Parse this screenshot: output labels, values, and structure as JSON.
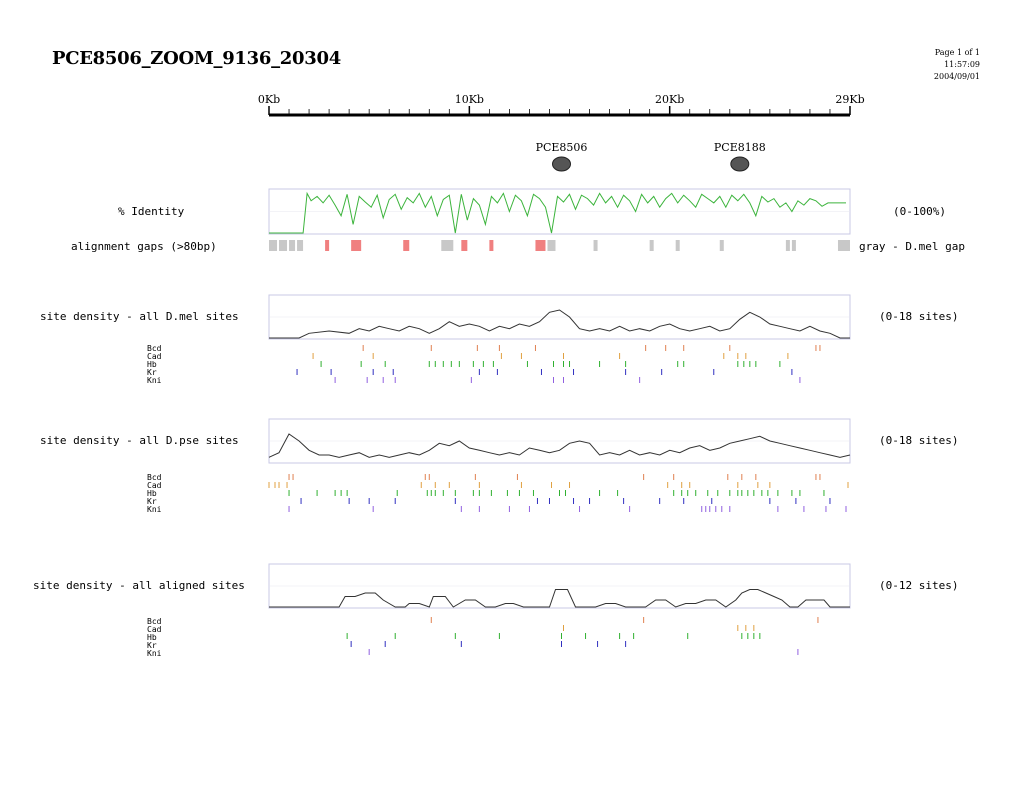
{
  "header": {
    "title": "PCE8506_ZOOM_9136_20304",
    "page": "Page 1 of 1",
    "time": "11:57:09",
    "date": "2004/09/01"
  },
  "ruler": {
    "ticks": [
      {
        "kb": 0,
        "label": "0Kb"
      },
      {
        "kb": 10,
        "label": "10Kb"
      },
      {
        "kb": 20,
        "label": "20Kb"
      },
      {
        "kb": 29,
        "label": "29Kb"
      }
    ],
    "max_kb": 29
  },
  "elements": [
    {
      "name": "PCE8506",
      "kb": 14.6
    },
    {
      "name": "PCE8188",
      "kb": 23.5
    }
  ],
  "labels": {
    "identity": "% Identity",
    "identity_range": "(0-100%)",
    "gaps": "alignment gaps (>80bp)",
    "gaps_legend": "gray - D.mel gap",
    "dmel_density": "site density - all D.mel sites",
    "dmel_range": "(0-18 sites)",
    "dpse_density": "site density - all D.pse sites",
    "dpse_range": "(0-18 sites)",
    "aligned_density": "site density - all aligned sites",
    "aligned_range": "(0-12 sites)"
  },
  "colors": {
    "identity": "#3cb43c",
    "density": "#333333",
    "gap_gray": "#c8c8c8",
    "gap_red": "#f08080",
    "Bcd": "#e08050",
    "Cad": "#e0a040",
    "Hb": "#30b030",
    "Kr": "#3030c0",
    "Kni": "#9060e0"
  },
  "factors": [
    "Bcd",
    "Cad",
    "Hb",
    "Kr",
    "Kni"
  ],
  "chart_data": [
    {
      "type": "line",
      "name": "% Identity",
      "ylim": [
        0,
        100
      ],
      "x_kb": [
        0,
        1.7,
        1.9,
        2.1,
        2.4,
        2.7,
        3.0,
        3.3,
        3.6,
        3.9,
        4.2,
        4.5,
        4.8,
        5.1,
        5.4,
        5.7,
        6.0,
        6.3,
        6.6,
        6.9,
        7.2,
        7.5,
        7.8,
        8.1,
        8.4,
        8.7,
        9.0,
        9.3,
        9.6,
        9.9,
        10.2,
        10.5,
        10.8,
        11.1,
        11.4,
        11.7,
        12.0,
        12.3,
        12.6,
        12.9,
        13.2,
        13.5,
        13.8,
        14.1,
        14.4,
        14.7,
        15.0,
        15.3,
        15.6,
        15.9,
        16.2,
        16.5,
        16.8,
        17.1,
        17.4,
        17.7,
        18.0,
        18.3,
        18.6,
        18.9,
        19.2,
        19.5,
        19.8,
        20.1,
        20.4,
        20.7,
        21.0,
        21.3,
        21.6,
        21.9,
        22.2,
        22.5,
        22.8,
        23.1,
        23.4,
        23.7,
        24.0,
        24.3,
        24.6,
        24.9,
        25.2,
        25.5,
        25.8,
        26.1,
        26.4,
        26.7,
        27.0,
        27.3,
        27.6,
        27.9,
        28.2,
        28.5,
        28.8
      ],
      "values": [
        0,
        0,
        92,
        75,
        85,
        70,
        88,
        65,
        40,
        90,
        20,
        85,
        72,
        60,
        88,
        35,
        78,
        90,
        55,
        82,
        70,
        92,
        60,
        85,
        40,
        78,
        88,
        0,
        90,
        30,
        80,
        65,
        20,
        85,
        70,
        92,
        50,
        88,
        75,
        40,
        90,
        80,
        60,
        0,
        85,
        72,
        90,
        55,
        88,
        80,
        65,
        92,
        70,
        85,
        60,
        88,
        75,
        50,
        90,
        70,
        85,
        60,
        80,
        92,
        70,
        88,
        75,
        60,
        90,
        80,
        70,
        85,
        60,
        88,
        75,
        90,
        70,
        40,
        85,
        72,
        80,
        60,
        70,
        50,
        75,
        65,
        80,
        75,
        62,
        70,
        70,
        70,
        70
      ]
    },
    {
      "type": "bar",
      "name": "alignment gaps (>80bp)",
      "gray_kb": [
        [
          0,
          0.4
        ],
        [
          0.5,
          0.9
        ],
        [
          1.0,
          1.3
        ],
        [
          1.4,
          1.7
        ],
        [
          8.6,
          9.2
        ],
        [
          13.9,
          14.3
        ],
        [
          16.2,
          16.4
        ],
        [
          19.0,
          19.2
        ],
        [
          20.3,
          20.5
        ],
        [
          22.5,
          22.7
        ],
        [
          25.8,
          26.0
        ],
        [
          26.1,
          26.3
        ],
        [
          28.4,
          29.0
        ]
      ],
      "red_kb": [
        [
          2.8,
          3.0
        ],
        [
          4.1,
          4.6
        ],
        [
          6.7,
          7.0
        ],
        [
          9.6,
          9.9
        ],
        [
          11.0,
          11.2
        ],
        [
          13.3,
          13.8
        ]
      ]
    },
    {
      "type": "line",
      "name": "site density - all D.mel sites",
      "ylim": [
        0,
        18
      ],
      "x_kb": [
        0,
        1.5,
        2,
        3,
        4,
        4.5,
        5,
        5.5,
        6,
        6.5,
        7,
        7.5,
        8,
        8.5,
        9,
        9.5,
        10,
        10.5,
        11,
        11.5,
        12,
        12.5,
        13,
        13.5,
        14,
        14.5,
        15,
        15.5,
        16,
        16.5,
        17,
        17.5,
        18,
        18.5,
        19,
        19.5,
        20,
        20.5,
        21,
        21.5,
        22,
        22.5,
        23,
        23.5,
        24,
        24.5,
        25,
        25.5,
        26,
        26.5,
        27,
        27.5,
        28,
        28.5,
        29
      ],
      "values": [
        0,
        0,
        2,
        3,
        2,
        4,
        3,
        5,
        4,
        3,
        5,
        4,
        2,
        4,
        7,
        5,
        6,
        5,
        3,
        5,
        4,
        6,
        5,
        7,
        11,
        12,
        9,
        4,
        3,
        4,
        3,
        5,
        3,
        4,
        3,
        5,
        6,
        4,
        3,
        4,
        5,
        3,
        4,
        8,
        11,
        9,
        6,
        5,
        4,
        3,
        5,
        3,
        2,
        0,
        0
      ]
    },
    {
      "type": "line",
      "name": "site density - all D.pse sites",
      "ylim": [
        0,
        18
      ],
      "x_kb": [
        0,
        0.5,
        1,
        1.5,
        2,
        2.5,
        3,
        3.5,
        4,
        4.5,
        5,
        5.5,
        6,
        6.5,
        7,
        7.5,
        8,
        8.5,
        9,
        9.5,
        10,
        10.5,
        11,
        11.5,
        12,
        12.5,
        13,
        13.5,
        14,
        14.5,
        15,
        15.5,
        16,
        16.5,
        17,
        17.5,
        18,
        18.5,
        19,
        19.5,
        20,
        20.5,
        21,
        21.5,
        22,
        22.5,
        23,
        23.5,
        24,
        24.5,
        25,
        25.5,
        26,
        26.5,
        27,
        27.5,
        28,
        28.5,
        29
      ],
      "values": [
        2,
        4,
        12,
        9,
        5,
        3,
        3,
        2,
        3,
        4,
        2,
        3,
        2,
        3,
        4,
        3,
        5,
        8,
        7,
        9,
        6,
        5,
        4,
        3,
        4,
        3,
        6,
        5,
        4,
        5,
        8,
        9,
        8,
        3,
        4,
        3,
        5,
        3,
        4,
        3,
        5,
        4,
        6,
        7,
        5,
        6,
        8,
        9,
        10,
        11,
        9,
        8,
        7,
        6,
        5,
        4,
        3,
        2,
        3
      ]
    },
    {
      "type": "line",
      "name": "site density - all aligned sites",
      "ylim": [
        0,
        12
      ],
      "x_kb": [
        0,
        3.5,
        3.8,
        4.3,
        4.8,
        5.3,
        5.7,
        6.3,
        6.8,
        7,
        7.5,
        8,
        8.2,
        8.8,
        9.2,
        9.8,
        10.3,
        10.8,
        11.3,
        11.8,
        12.2,
        12.7,
        13.3,
        14,
        14.3,
        14.6,
        14.9,
        15.3,
        15.6,
        16.3,
        16.8,
        17.3,
        17.8,
        18.3,
        18.8,
        19.3,
        19.8,
        20.3,
        20.8,
        21.3,
        21.8,
        22.3,
        22.8,
        23.3,
        23.6,
        24,
        24.4,
        24.8,
        25.2,
        25.6,
        26,
        26.4,
        26.8,
        27.3,
        27.7,
        28,
        29
      ],
      "values": [
        0,
        0,
        3,
        3,
        4,
        4,
        2,
        0,
        0,
        1,
        1,
        0,
        3,
        3,
        0,
        2,
        2,
        0,
        0,
        1,
        1,
        0,
        0,
        0,
        5,
        5,
        5,
        0,
        0,
        0,
        1,
        1,
        0,
        0,
        0,
        2,
        2,
        0,
        1,
        1,
        2,
        2,
        0,
        2,
        4,
        5,
        5,
        4,
        3,
        2,
        0,
        0,
        2,
        2,
        2,
        0,
        0
      ]
    },
    {
      "type": "scatter",
      "name": "D.mel sites",
      "Bcd": [
        4.7,
        8.1,
        10.4,
        11.5,
        13.3,
        18.8,
        19.8,
        20.7,
        23.0,
        27.3,
        27.5
      ],
      "Cad": [
        2.2,
        5.2,
        11.6,
        12.6,
        14.7,
        17.5,
        22.7,
        23.4,
        23.8,
        25.9
      ],
      "Hb": [
        2.6,
        4.6,
        5.8,
        8.0,
        8.3,
        8.7,
        9.1,
        9.5,
        10.2,
        10.7,
        11.2,
        12.9,
        14.2,
        14.7,
        15.0,
        16.5,
        17.8,
        20.4,
        20.7,
        23.4,
        23.7,
        24.0,
        24.3,
        25.5
      ],
      "Kr": [
        1.4,
        3.1,
        5.2,
        6.2,
        10.5,
        11.4,
        13.6,
        15.2,
        17.8,
        19.6,
        22.2,
        26.1
      ],
      "Kni": [
        3.3,
        4.9,
        5.7,
        6.3,
        10.1,
        14.2,
        14.7,
        18.5,
        26.5
      ]
    },
    {
      "type": "scatter",
      "name": "D.pse sites",
      "Bcd": [
        1.0,
        1.2,
        7.8,
        8.0,
        10.3,
        12.4,
        18.7,
        20.2,
        22.9,
        23.6,
        24.3,
        27.3,
        27.5
      ],
      "Cad": [
        0.0,
        0.3,
        0.5,
        0.9,
        7.6,
        8.3,
        9.0,
        10.5,
        12.6,
        14.1,
        15.0,
        19.9,
        20.6,
        21.0,
        23.4,
        24.4,
        25.0,
        28.9
      ],
      "Hb": [
        1.0,
        2.4,
        3.3,
        3.6,
        3.9,
        6.4,
        7.9,
        8.1,
        8.3,
        8.7,
        9.3,
        10.2,
        10.5,
        11.1,
        11.9,
        12.5,
        13.2,
        14.5,
        14.8,
        16.5,
        17.4,
        20.2,
        20.6,
        20.9,
        21.3,
        21.9,
        22.4,
        23.0,
        23.4,
        23.6,
        23.9,
        24.2,
        24.6,
        24.9,
        25.4,
        26.1,
        26.5,
        27.7
      ],
      "Kr": [
        1.6,
        4.0,
        5.0,
        6.3,
        9.3,
        13.4,
        14.0,
        15.2,
        16.0,
        17.7,
        19.5,
        20.7,
        22.1,
        25.0,
        26.3,
        28.0
      ],
      "Kni": [
        1.0,
        5.2,
        9.6,
        10.5,
        12.0,
        13.0,
        15.5,
        18.0,
        21.6,
        21.8,
        22.0,
        22.3,
        22.6,
        23.0,
        25.4,
        26.7,
        27.8,
        28.8
      ]
    },
    {
      "type": "scatter",
      "name": "aligned sites",
      "Bcd": [
        8.1,
        18.7,
        27.4
      ],
      "Cad": [
        14.7,
        23.4,
        23.8,
        24.2
      ],
      "Hb": [
        3.9,
        6.3,
        9.3,
        11.5,
        14.6,
        15.8,
        17.5,
        18.2,
        20.9,
        23.6,
        23.9,
        24.2,
        24.5
      ],
      "Kr": [
        4.1,
        5.8,
        9.6,
        14.6,
        16.4,
        17.8
      ],
      "Kni": [
        5.0,
        26.4
      ]
    }
  ]
}
